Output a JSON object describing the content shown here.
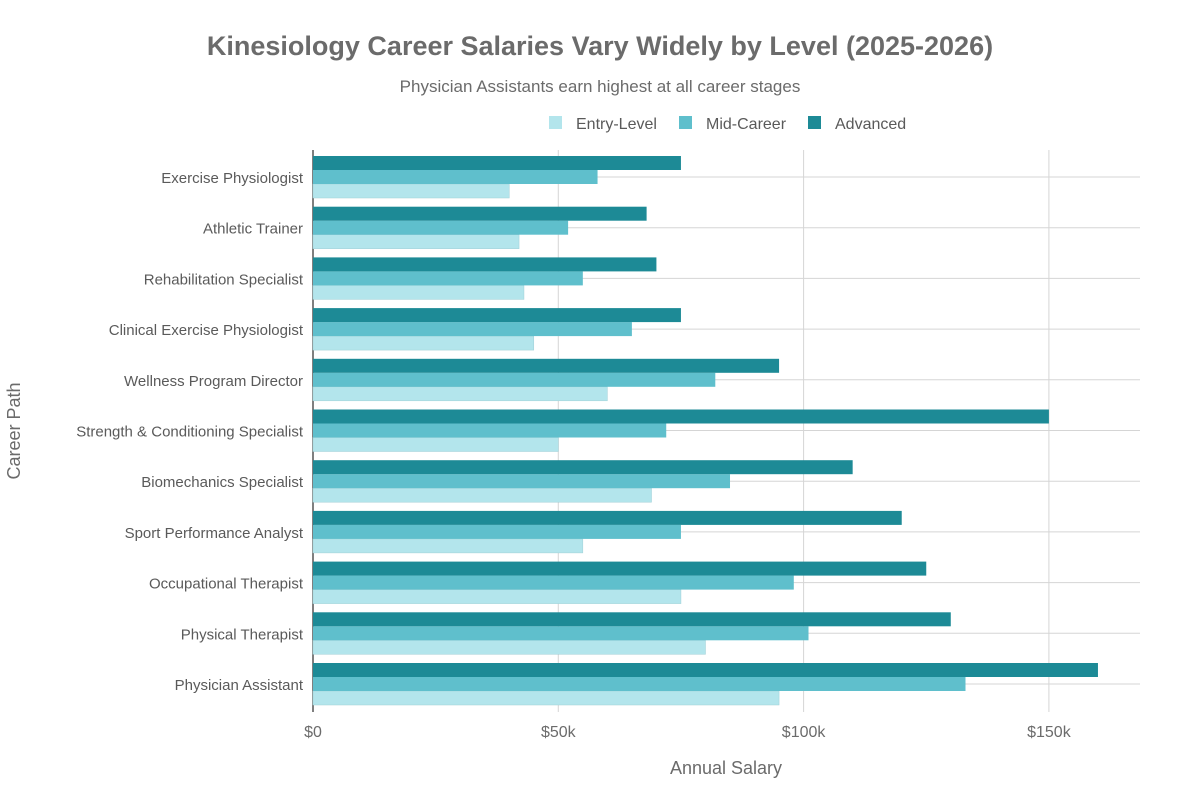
{
  "chart_data": {
    "type": "bar",
    "orientation": "horizontal",
    "title": "Kinesiology Career Salaries Vary Widely by Level (2025-2026)",
    "subtitle": "Physician Assistants earn highest at all career stages",
    "xlabel": "Annual Salary",
    "ylabel": "Career Path",
    "xlim": [
      0,
      168000
    ],
    "xticks": [
      {
        "v": 0,
        "label": "$0"
      },
      {
        "v": 50000,
        "label": "$50k"
      },
      {
        "v": 100000,
        "label": "$100k"
      },
      {
        "v": 150000,
        "label": "$150k"
      }
    ],
    "legend_position": "top-right",
    "categories": [
      "Physician Assistant",
      "Physical Therapist",
      "Occupational Therapist",
      "Sport Performance Analyst",
      "Biomechanics Specialist",
      "Strength & Conditioning Specialist",
      "Wellness Program Director",
      "Clinical Exercise Physiologist",
      "Rehabilitation Specialist",
      "Athletic Trainer",
      "Exercise Physiologist"
    ],
    "series": [
      {
        "name": "Entry-Level",
        "color": "#b3e5ec",
        "values": [
          95000,
          80000,
          75000,
          55000,
          69000,
          50000,
          60000,
          45000,
          43000,
          42000,
          40000
        ]
      },
      {
        "name": "Mid-Career",
        "color": "#5fbfcc",
        "values": [
          133000,
          101000,
          98000,
          75000,
          85000,
          72000,
          82000,
          65000,
          55000,
          52000,
          58000
        ]
      },
      {
        "name": "Advanced",
        "color": "#1d8a96",
        "values": [
          160000,
          130000,
          125000,
          120000,
          110000,
          150000,
          95000,
          75000,
          70000,
          68000,
          75000
        ]
      }
    ]
  }
}
